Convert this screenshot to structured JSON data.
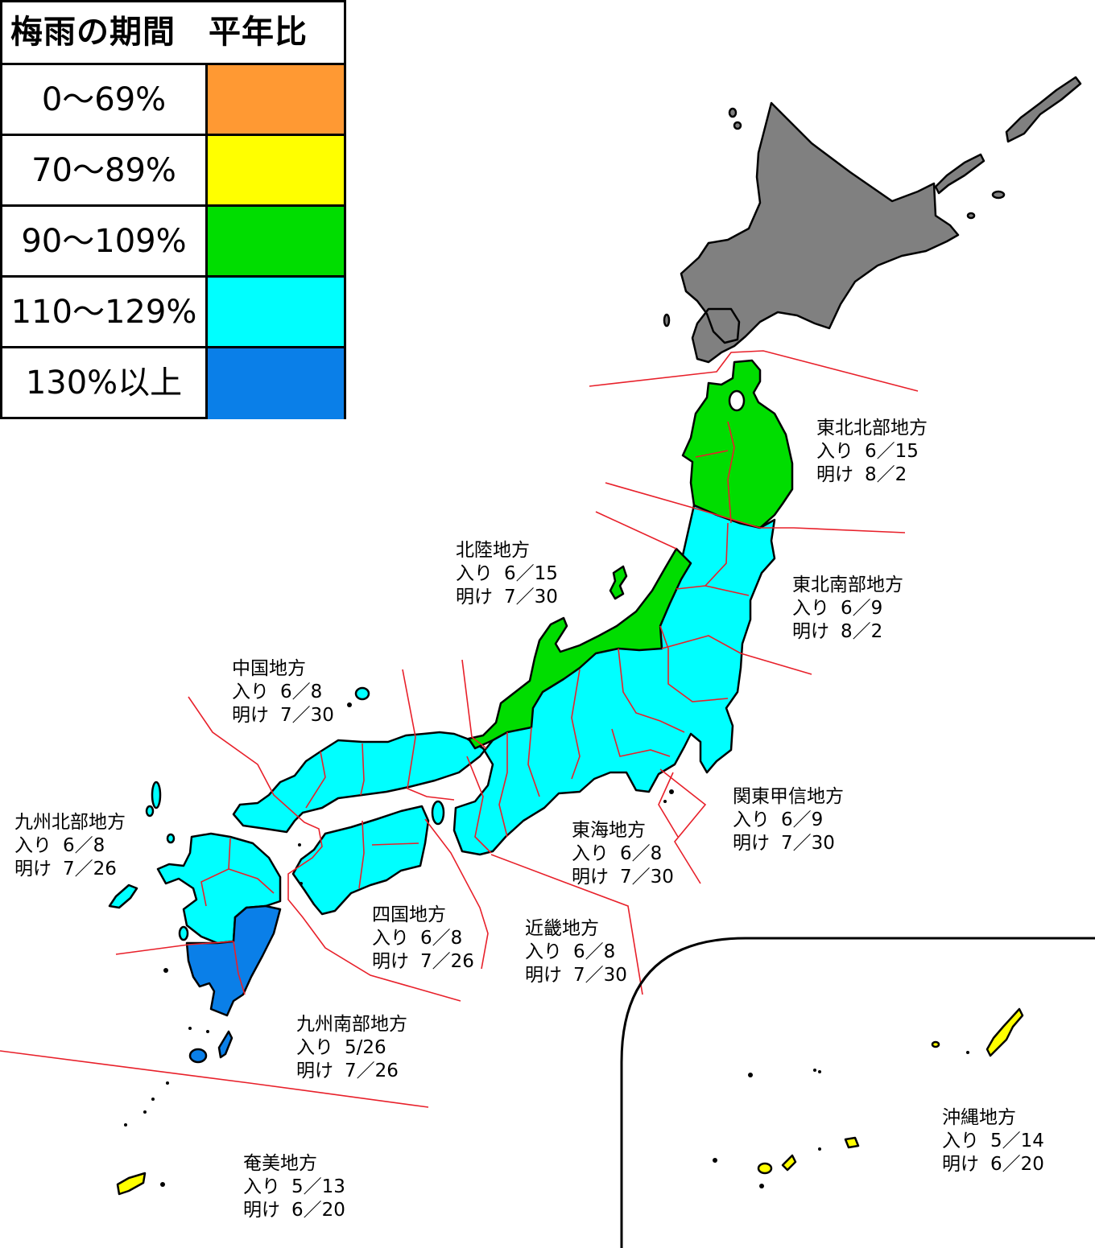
{
  "legend": {
    "title": "梅雨の期間　平年比",
    "items": [
      {
        "label": "0～69%",
        "color": "#FF9933"
      },
      {
        "label": "70～89%",
        "color": "#FFFF00"
      },
      {
        "label": "90～109%",
        "color": "#00DD00"
      },
      {
        "label": "110～129%",
        "color": "#00FFFF"
      },
      {
        "label": "130%以上",
        "color": "#0A7FE8"
      }
    ]
  },
  "colors": {
    "no_data": "#808080",
    "green": "#00DD00",
    "cyan": "#00FFFF",
    "blue": "#0A7FE8",
    "yellow": "#FFFF00",
    "boundary": "#E8202A"
  },
  "regions": [
    {
      "id": "tohoku-north",
      "name": "東北北部地方",
      "entry_label": "入り",
      "entry": "6／15",
      "exit_label": "明け",
      "exit": "8／2"
    },
    {
      "id": "tohoku-south",
      "name": "東北南部地方",
      "entry_label": "入り",
      "entry": "6／9",
      "exit_label": "明け",
      "exit": "8／2"
    },
    {
      "id": "hokuriku",
      "name": "北陸地方",
      "entry_label": "入り",
      "entry": "6／15",
      "exit_label": "明け",
      "exit": "7／30"
    },
    {
      "id": "kanto-koshin",
      "name": "関東甲信地方",
      "entry_label": "入り",
      "entry": "6／9",
      "exit_label": "明け",
      "exit": "7／30"
    },
    {
      "id": "tokai",
      "name": "東海地方",
      "entry_label": "入り",
      "entry": "6／8",
      "exit_label": "明け",
      "exit": "7／30"
    },
    {
      "id": "kinki",
      "name": "近畿地方",
      "entry_label": "入り",
      "entry": "6／8",
      "exit_label": "明け",
      "exit": "7／30"
    },
    {
      "id": "chugoku",
      "name": "中国地方",
      "entry_label": "入り",
      "entry": "6／8",
      "exit_label": "明け",
      "exit": "7／30"
    },
    {
      "id": "shikoku",
      "name": "四国地方",
      "entry_label": "入り",
      "entry": "6／8",
      "exit_label": "明け",
      "exit": "7／26"
    },
    {
      "id": "kyushu-north",
      "name": "九州北部地方",
      "entry_label": "入り",
      "entry": "6／8",
      "exit_label": "明け",
      "exit": "7／26"
    },
    {
      "id": "kyushu-south",
      "name": "九州南部地方",
      "entry_label": "入り",
      "entry": "5/26",
      "exit_label": "明け",
      "exit": "7／26"
    },
    {
      "id": "amami",
      "name": "奄美地方",
      "entry_label": "入り",
      "entry": "5／13",
      "exit_label": "明け",
      "exit": "6／20"
    },
    {
      "id": "okinawa",
      "name": "沖縄地方",
      "entry_label": "入り",
      "entry": "5／14",
      "exit_label": "明け",
      "exit": "6／20"
    }
  ]
}
